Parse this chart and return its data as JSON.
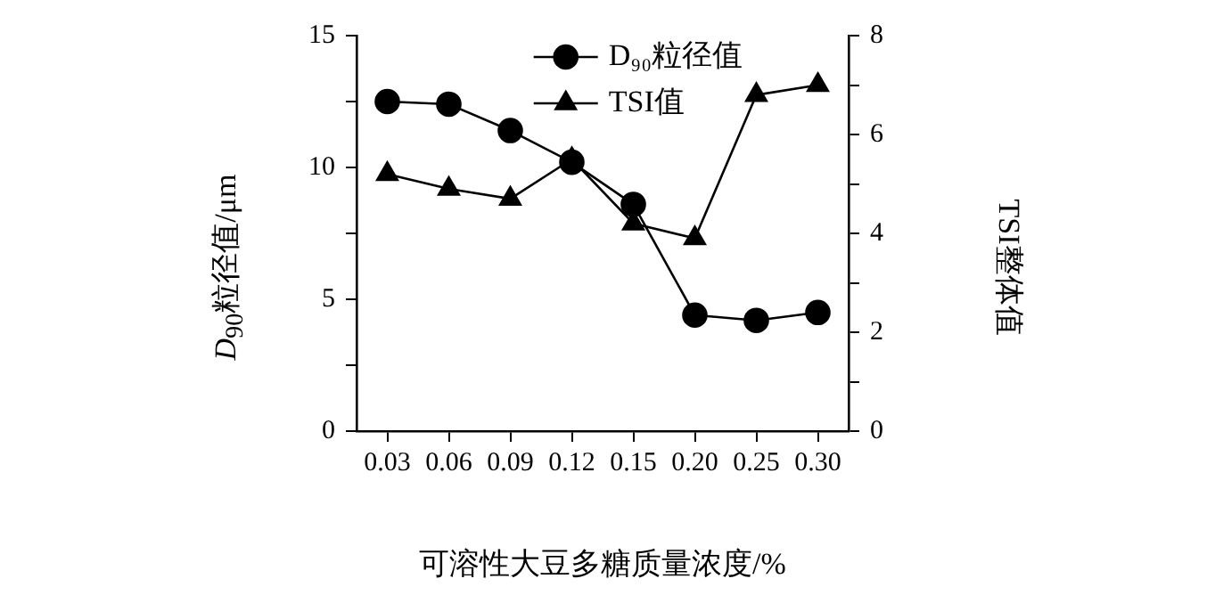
{
  "chart_data": {
    "type": "line",
    "categories": [
      "0.03",
      "0.06",
      "0.09",
      "0.12",
      "0.15",
      "0.20",
      "0.25",
      "0.30"
    ],
    "series": [
      {
        "name": "D₉₀粒径值",
        "color": "#000000",
        "marker": "circle",
        "values": [
          12.5,
          12.4,
          11.4,
          10.2,
          8.6,
          4.4,
          4.2,
          4.5
        ]
      },
      {
        "name": "TSI值",
        "color": "#000000",
        "marker": "triangle",
        "axis": "y2",
        "values": [
          5.2,
          4.9,
          4.7,
          5.5,
          4.2,
          3.9,
          6.8,
          7.0
        ]
      }
    ],
    "xlabel": "可溶性大豆多糖质量浓度/%",
    "ylabel": "D$_{90}$粒径值/μm",
    "y2label": "TSI整体值",
    "ylim": [
      0,
      15
    ],
    "yticks": [
      0,
      {
        "value": 2.5,
        "label": null
      },
      5,
      {
        "value": 7.5,
        "label": null
      },
      10,
      {
        "value": 12.5,
        "label": null
      },
      15
    ],
    "y2lim": [
      0,
      8
    ],
    "y2ticks": [
      0,
      {
        "value": 1,
        "label": null
      },
      2,
      {
        "value": 3,
        "label": null
      },
      4,
      {
        "value": 5,
        "label": null
      },
      6,
      {
        "value": 7,
        "label": null
      },
      8
    ],
    "grid": false,
    "legend": "top",
    "line_style": "solid"
  }
}
